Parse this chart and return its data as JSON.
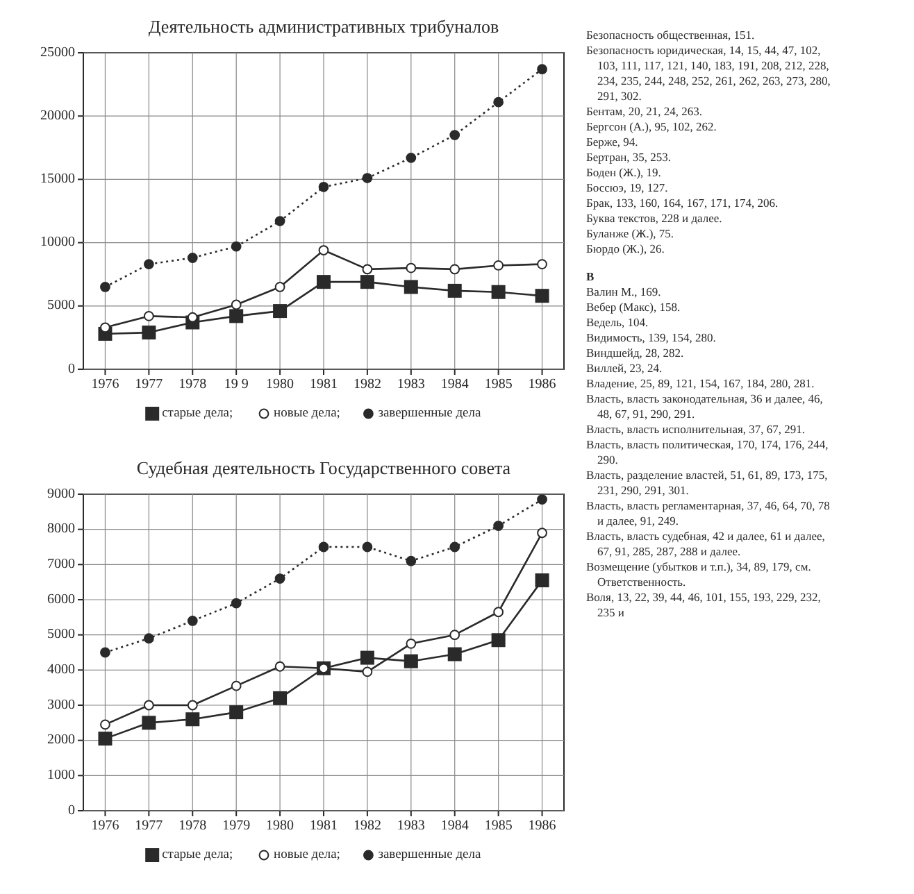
{
  "chart_data": [
    {
      "type": "line",
      "title": "Деятельность административных трибуналов",
      "x": [
        1976,
        1977,
        1978,
        1979,
        1980,
        1981,
        1982,
        1983,
        1984,
        1985,
        1986
      ],
      "series": [
        {
          "name": "старые дела;",
          "color": "#2a2a2a",
          "marker": "square",
          "line_style": "solid",
          "values": [
            2800,
            2900,
            3700,
            4200,
            4600,
            6900,
            6900,
            6500,
            6200,
            6100,
            5800
          ]
        },
        {
          "name": "новые дела;",
          "color": "#ffffff",
          "marker": "circle",
          "line_style": "solid",
          "values": [
            3300,
            4200,
            4100,
            5100,
            6500,
            9400,
            7900,
            8000,
            7900,
            8200,
            8300
          ]
        },
        {
          "name": "завершенные дела",
          "color": "#2a2a2a",
          "marker": "circle",
          "line_style": "dotted",
          "values": [
            6500,
            8300,
            8800,
            9700,
            11700,
            14400,
            15100,
            16700,
            18500,
            21100,
            23700
          ]
        }
      ],
      "xlim": [
        1975.5,
        1986.5
      ],
      "xticks": [
        1976,
        1977,
        1978,
        {
          "value": 1979,
          "label": "19 9"
        },
        1980,
        1981,
        1982,
        1983,
        1984,
        1985,
        1986
      ],
      "ylim": [
        0,
        25000
      ],
      "yticks": [
        0,
        5000,
        10000,
        15000,
        20000,
        25000
      ],
      "grid": true,
      "legend": "bottom"
    },
    {
      "type": "line",
      "title": "Судебная деятельность Государственного совета",
      "x": [
        1976,
        1977,
        1978,
        1979,
        1980,
        1981,
        1982,
        1983,
        1984,
        1985,
        1986
      ],
      "series": [
        {
          "name": "старые дела;",
          "color": "#2a2a2a",
          "marker": "square",
          "line_style": "solid",
          "values": [
            2050,
            2500,
            2600,
            2800,
            3200,
            4050,
            4350,
            4250,
            4450,
            4850,
            6550
          ]
        },
        {
          "name": "новые дела;",
          "color": "#ffffff",
          "marker": "circle",
          "line_style": "solid",
          "values": [
            2450,
            3000,
            3000,
            3550,
            4100,
            4050,
            3950,
            4750,
            5000,
            5650,
            7900
          ]
        },
        {
          "name": "завершенные дела",
          "color": "#2a2a2a",
          "marker": "circle",
          "line_style": "dotted",
          "values": [
            4500,
            4900,
            5400,
            5900,
            6600,
            7500,
            7500,
            7100,
            7500,
            8100,
            8850
          ]
        }
      ],
      "xlim": [
        1975.5,
        1986.5
      ],
      "xticks": [
        1976,
        1977,
        1978,
        1979,
        1980,
        1981,
        1982,
        1983,
        1984,
        1985,
        1986
      ],
      "ylim": [
        0,
        9000
      ],
      "yticks": [
        0,
        1000,
        2000,
        3000,
        4000,
        5000,
        6000,
        7000,
        8000,
        9000
      ],
      "grid": true,
      "legend": "bottom"
    },
    {
      "type": "other",
      "annotations": [
        "Безопасность общественная, 151.",
        "Безопасность юридическая, 14, 15, 44, 47, 102, 103, 111, 117, 121, 140, 183, 191, 208, 212, 228, 234, 235, 244, 248, 252, 261, 262, 263, 273, 280, 291, 302.",
        "Бентам, 20, 21, 24, 263.",
        "Бергсон (А.), 95, 102, 262.",
        "Берже, 94.",
        "Бертран, 35, 253.",
        "Боден (Ж.), 19.",
        "Боссюэ, 19, 127.",
        "Брак, 133, 160, 164, 167, 171, 174, 206.",
        "Буква текстов, 228 и далее.",
        "Буланже (Ж.), 75.",
        "Бюрдо (Ж.), 26.",
        "В",
        "Валин М., 169.",
        "Вебер (Макс), 158.",
        "Ведель, 104.",
        "Видимость, 139, 154, 280.",
        "Виндшейд, 28, 282.",
        "Виллей, 23, 24.",
        "Владение, 25, 89, 121, 154, 167, 184, 280, 281.",
        "Власть, власть законодательная, 36 и далее, 46, 48, 67, 91, 290, 291.",
        "Власть, власть исполнительная, 37, 67, 291.",
        "Власть, власть политическая, 170, 174, 176, 244, 290.",
        "Власть, разделение властей, 51, 61, 89, 173, 175, 231, 290, 291, 301.",
        "Власть, власть регламентарная, 37, 46, 64, 70, 78 и далее, 91, 249.",
        "Власть, власть судебная, 42 и далее, 61 и далее, 67, 91, 285, 287, 288 и далее.",
        "Возмещение (убытков и т.п.), 34, 89, 179, см. Ответственность.",
        "Воля, 13, 22, 39, 44, 46, 101, 155, 193, 229, 232, 235 и"
      ]
    }
  ]
}
